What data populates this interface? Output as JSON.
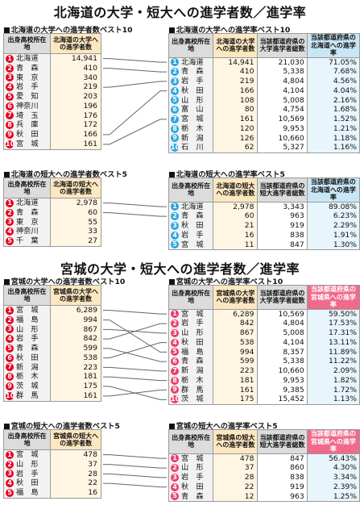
{
  "title1": "北海道の大学・短大への進学者数／進学率",
  "title2": "宮城の大学・短大への進学者数／進学率",
  "hk_univ_count": {
    "label": "北海道の大学への進学者数ベスト10",
    "h1": "出身高校所在地",
    "h2": "北海道の大学への進学者数",
    "rows": [
      [
        "北海道",
        "14,941"
      ],
      [
        "青　森",
        "410"
      ],
      [
        "東　京",
        "340"
      ],
      [
        "岩　手",
        "219"
      ],
      [
        "愛　知",
        "203"
      ],
      [
        "神奈川",
        "196"
      ],
      [
        "埼　玉",
        "176"
      ],
      [
        "兵　庫",
        "172"
      ],
      [
        "秋　田",
        "166"
      ],
      [
        "宮　城",
        "161"
      ]
    ]
  },
  "hk_univ_rate": {
    "label": "北海道の大学への進学率ベスト10",
    "h1": "出身高校所在地",
    "h2": "北海道の大学への進学者数",
    "h3": "当該都道府県の大学進学者総数",
    "h4": "当該都道府県の北海道への進学率",
    "rows": [
      [
        "北海道",
        "14,941",
        "21,030",
        "71.05%"
      ],
      [
        "青　森",
        "410",
        "5,338",
        "7.68%"
      ],
      [
        "岩　手",
        "219",
        "4,804",
        "4.56%"
      ],
      [
        "秋　田",
        "166",
        "4,104",
        "4.04%"
      ],
      [
        "山　形",
        "108",
        "5,008",
        "2.16%"
      ],
      [
        "富　山",
        "80",
        "4,754",
        "1.68%"
      ],
      [
        "宮　城",
        "161",
        "10,569",
        "1.52%"
      ],
      [
        "栃　木",
        "120",
        "9,953",
        "1.21%"
      ],
      [
        "新　潟",
        "126",
        "10,660",
        "1.18%"
      ],
      [
        "石　川",
        "62",
        "5,327",
        "1.16%"
      ]
    ]
  },
  "hk_jc_count": {
    "label": "北海道の短大への進学者数ベスト5",
    "h1": "出身高校所在地",
    "h2": "北海道の短大への進学者数",
    "rows": [
      [
        "北海道",
        "2,978"
      ],
      [
        "青　森",
        "60"
      ],
      [
        "東　京",
        "55"
      ],
      [
        "神奈川",
        "33"
      ],
      [
        "千　葉",
        "27"
      ]
    ]
  },
  "hk_jc_rate": {
    "label": "北海道の短大への進学率ベスト5",
    "h1": "出身高校所在地",
    "h2": "北海道の短大への進学者数",
    "h3": "当該都道府県の短大進学者総数",
    "h4": "当該都道府県の北海道への進学率",
    "rows": [
      [
        "北海道",
        "2,978",
        "3,343",
        "89.08%"
      ],
      [
        "青　森",
        "60",
        "963",
        "6.23%"
      ],
      [
        "秋　田",
        "21",
        "919",
        "2.29%"
      ],
      [
        "岩　手",
        "16",
        "838",
        "1.91%"
      ],
      [
        "宮　城",
        "11",
        "847",
        "1.30%"
      ]
    ]
  },
  "mg_univ_count": {
    "label": "宮城の大学への進学者数ベスト10",
    "h1": "出身高校所在地",
    "h2": "宮城県の大学への進学者数",
    "rows": [
      [
        "宮　城",
        "6,289"
      ],
      [
        "福　島",
        "994"
      ],
      [
        "山　形",
        "867"
      ],
      [
        "岩　手",
        "842"
      ],
      [
        "青　森",
        "599"
      ],
      [
        "秋　田",
        "538"
      ],
      [
        "新　潟",
        "223"
      ],
      [
        "栃　木",
        "181"
      ],
      [
        "茨　城",
        "175"
      ],
      [
        "群　馬",
        "161"
      ]
    ]
  },
  "mg_univ_rate": {
    "label": "宮城の大学への進学率ベスト10",
    "h1": "出身高校所在地",
    "h2": "宮城県の大学への進学者数",
    "h3": "当該都道府県の大学進学者総数",
    "h4": "当該都道府県の宮城県への進学率",
    "rows": [
      [
        "宮　城",
        "6,289",
        "10,569",
        "59.50%"
      ],
      [
        "岩　手",
        "842",
        "4,804",
        "17.53%"
      ],
      [
        "山　形",
        "867",
        "5,008",
        "17.31%"
      ],
      [
        "秋　田",
        "538",
        "4,104",
        "13.11%"
      ],
      [
        "福　島",
        "994",
        "8,357",
        "11.89%"
      ],
      [
        "青　森",
        "599",
        "5,338",
        "11.22%"
      ],
      [
        "新　潟",
        "223",
        "10,660",
        "2.09%"
      ],
      [
        "栃　木",
        "181",
        "9,953",
        "1.82%"
      ],
      [
        "群　馬",
        "161",
        "9,385",
        "1.72%"
      ],
      [
        "茨　城",
        "175",
        "15,452",
        "1.13%"
      ]
    ]
  },
  "mg_jc_count": {
    "label": "宮城の短大への進学者数ベスト5",
    "h1": "出身高校所在地",
    "h2": "宮城県の短大への進学者数",
    "rows": [
      [
        "宮　城",
        "478"
      ],
      [
        "山　形",
        "37"
      ],
      [
        "岩　手",
        "28"
      ],
      [
        "秋　田",
        "22"
      ],
      [
        "福　島",
        "16"
      ]
    ]
  },
  "mg_jc_rate": {
    "label": "宮城の短大への進学率ベスト5",
    "h1": "出身高校所在地",
    "h2": "宮城県の短大への進学者数",
    "h3": "当該都道府県の短大進学者総数",
    "h4": "当該都道府県の宮城県への進学率",
    "rows": [
      [
        "宮　城",
        "478",
        "847",
        "56.43%"
      ],
      [
        "山　形",
        "37",
        "860",
        "4.30%"
      ],
      [
        "岩　手",
        "28",
        "838",
        "3.34%"
      ],
      [
        "秋　田",
        "22",
        "919",
        "2.39%"
      ],
      [
        "青　森",
        "12",
        "963",
        "1.25%"
      ]
    ]
  },
  "colors": {
    "hokkaido_badge": "#2aa7e0",
    "count_badge": "#e60020",
    "miyagi_badge": "#ea3e6c"
  }
}
